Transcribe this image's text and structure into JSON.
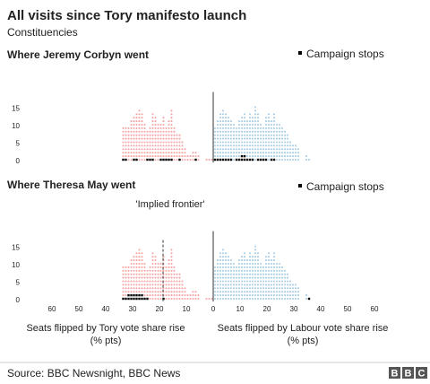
{
  "title": "All visits since Tory manifesto launch",
  "subtitle": "Constituencies",
  "source": "Source: BBC Newsnight, BBC News",
  "logo_letters": [
    "B",
    "B",
    "C"
  ],
  "legend_label": "Campaign stops",
  "colors": {
    "tory": "#f4a6a6",
    "labour": "#a9cde4",
    "stop": "#000000"
  },
  "chart_data": [
    {
      "type": "dot histogram",
      "title": "Where Jeremy Corbyn went",
      "ylim": [
        0,
        16
      ],
      "y_ticks": [
        "0",
        "5",
        "10",
        "15"
      ],
      "x_ticks_left": [
        "60",
        "50",
        "40",
        "30",
        "20",
        "10",
        "0"
      ],
      "x_ticks_right": [
        "10",
        "20",
        "30",
        "40",
        "50",
        "60"
      ],
      "tory_counts": [
        1,
        1,
        1,
        0,
        0,
        2,
        3,
        3,
        2,
        2,
        4,
        6,
        8,
        8,
        10,
        15,
        12,
        10,
        13,
        11,
        11,
        13,
        14,
        10,
        9,
        11,
        14,
        15,
        14,
        13,
        12,
        10,
        10,
        10
      ],
      "labour_counts": [
        10,
        12,
        14,
        15,
        14,
        13,
        12,
        11,
        10,
        12,
        13,
        14,
        12,
        14,
        13,
        16,
        14,
        11,
        10,
        13,
        14,
        12,
        14,
        11,
        11,
        10,
        9,
        8,
        6,
        5,
        5,
        4,
        0,
        0,
        2,
        1
      ],
      "tory_stops": [
        0,
        0,
        0,
        0,
        0,
        0,
        1,
        0,
        0,
        0,
        0,
        0,
        1,
        0,
        0,
        1,
        1,
        1,
        1,
        1,
        0,
        0,
        1,
        1,
        1,
        0,
        0,
        0,
        1,
        1,
        0,
        0,
        1,
        1
      ],
      "labour_stops": [
        1,
        1,
        1,
        1,
        1,
        1,
        1,
        0,
        1,
        1,
        2,
        2,
        1,
        1,
        1,
        0,
        1,
        1,
        1,
        1,
        0,
        1,
        1,
        0,
        0,
        0,
        0,
        0,
        0,
        0,
        0,
        0,
        0,
        0,
        0,
        0
      ],
      "legend": "Campaign stops"
    },
    {
      "type": "dot histogram",
      "title": "Where Theresa May went",
      "annotation": "'Implied frontier'",
      "frontier_x_pts": 18,
      "ylim": [
        0,
        16
      ],
      "y_ticks": [
        "0",
        "5",
        "10",
        "15"
      ],
      "x_ticks_left": [
        "60",
        "50",
        "40",
        "30",
        "20",
        "10",
        "0"
      ],
      "x_ticks_right": [
        "10",
        "20",
        "30",
        "40",
        "50",
        "60"
      ],
      "xlabel_left": [
        "Seats flipped by Tory vote share rise",
        "(% pts)"
      ],
      "xlabel_right": [
        "Seats flipped by Labour vote share rise",
        "(% pts)"
      ],
      "tory_counts": [
        1,
        1,
        1,
        0,
        0,
        2,
        3,
        3,
        2,
        2,
        4,
        6,
        8,
        8,
        10,
        15,
        12,
        10,
        13,
        11,
        11,
        13,
        14,
        10,
        9,
        11,
        14,
        15,
        14,
        13,
        12,
        10,
        10,
        10
      ],
      "labour_counts": [
        10,
        12,
        14,
        15,
        14,
        13,
        12,
        11,
        10,
        12,
        13,
        14,
        12,
        14,
        13,
        16,
        14,
        11,
        10,
        13,
        14,
        12,
        14,
        11,
        11,
        10,
        9,
        8,
        6,
        5,
        5,
        4,
        0,
        0,
        2,
        1
      ],
      "tory_stops": [
        0,
        0,
        0,
        0,
        0,
        0,
        0,
        0,
        0,
        0,
        0,
        0,
        0,
        0,
        0,
        0,
        0,
        0,
        1,
        0,
        0,
        0,
        0,
        0,
        1,
        1,
        2,
        2,
        2,
        2,
        2,
        2,
        1,
        1
      ],
      "labour_stops": [
        0,
        0,
        0,
        0,
        0,
        0,
        0,
        0,
        0,
        0,
        0,
        0,
        0,
        0,
        0,
        0,
        0,
        0,
        0,
        0,
        0,
        0,
        0,
        0,
        0,
        0,
        0,
        0,
        0,
        0,
        0,
        0,
        0,
        0,
        0,
        1
      ],
      "legend": "Campaign stops"
    }
  ]
}
